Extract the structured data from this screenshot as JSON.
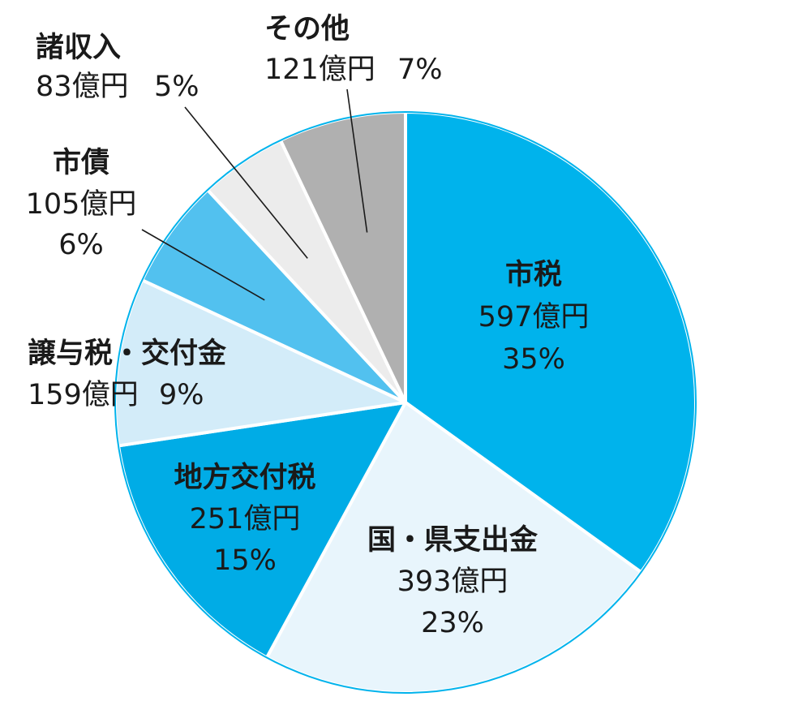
{
  "chart_data": {
    "type": "pie",
    "title": "",
    "slices": [
      {
        "name": "市税",
        "amount_label": "597億円",
        "percent_label": "35%",
        "amount": 597,
        "percent": 35,
        "color": "#00b3ec"
      },
      {
        "name": "国・県支出金",
        "amount_label": "393億円",
        "percent_label": "23%",
        "amount": 393,
        "percent": 23,
        "color": "#e8f5fc"
      },
      {
        "name": "地方交付税",
        "amount_label": "251億円",
        "percent_label": "15%",
        "amount": 251,
        "percent": 15,
        "color": "#00ace6"
      },
      {
        "name": "譲与税・交付金",
        "amount_label": "159億円",
        "percent_label": "9%",
        "amount": 159,
        "percent": 9,
        "color": "#d3ecf9"
      },
      {
        "name": "市債",
        "amount_label": "105億円",
        "percent_label": "6%",
        "amount": 105,
        "percent": 6,
        "color": "#52c1ef"
      },
      {
        "name": "諸収入",
        "amount_label": "83億円",
        "percent_label": "5%",
        "amount": 83,
        "percent": 5,
        "color": "#ececec"
      },
      {
        "name": "その他",
        "amount_label": "121億円",
        "percent_label": "7%",
        "amount": 121,
        "percent": 7,
        "color": "#b0b0b0"
      }
    ],
    "edge_color": "#00b3ec"
  }
}
